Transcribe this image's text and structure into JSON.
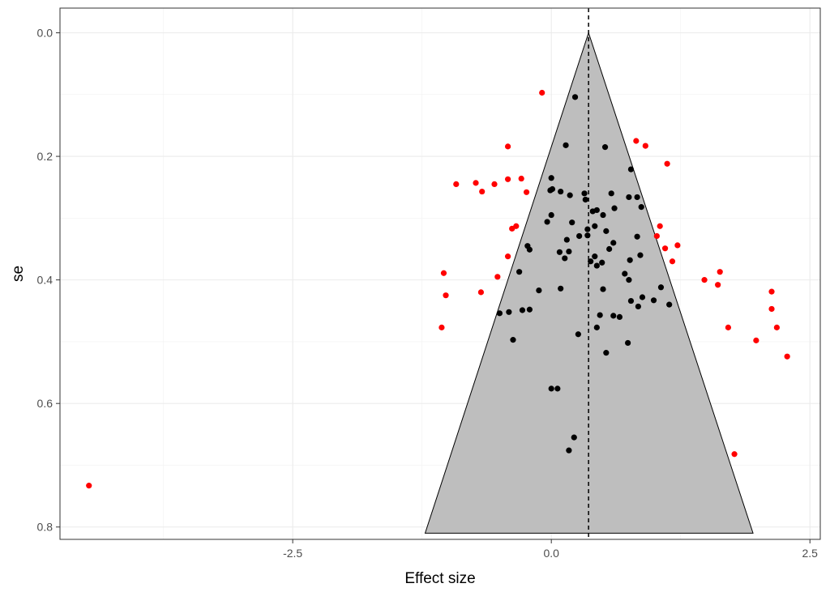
{
  "chart_data": {
    "type": "scatter",
    "title": "",
    "xlabel": "Effect size",
    "ylabel": "se",
    "xlim": [
      -4.75,
      2.6
    ],
    "ylim": [
      0.82,
      -0.04
    ],
    "y_reversed": true,
    "x_ticks": [
      -2.5,
      0.0,
      2.5
    ],
    "x_tick_labels": [
      "-2.5",
      "0.0",
      "2.5"
    ],
    "y_ticks": [
      0.0,
      0.2,
      0.4,
      0.6,
      0.8
    ],
    "y_tick_labels": [
      "0.0",
      "0.2",
      "0.4",
      "0.6",
      "0.8"
    ],
    "grid": true,
    "legend": "none",
    "funnel": {
      "center": 0.36,
      "apex_se": 0.0,
      "base_se": 0.81,
      "base_left": -1.22,
      "base_right": 1.95,
      "fill": "#bebebe"
    },
    "reference_line": {
      "x": 0.36,
      "style": "dashed"
    },
    "colors": {
      "inside": "#000000",
      "outside": "#ff0000"
    },
    "points_outside": [
      [
        -4.47,
        0.733
      ],
      [
        -0.09,
        0.097
      ],
      [
        -0.42,
        0.184
      ],
      [
        0.82,
        0.175
      ],
      [
        0.91,
        0.183
      ],
      [
        1.12,
        0.212
      ],
      [
        -0.92,
        0.245
      ],
      [
        -0.73,
        0.243
      ],
      [
        -0.67,
        0.257
      ],
      [
        -0.55,
        0.245
      ],
      [
        -0.42,
        0.237
      ],
      [
        -0.29,
        0.236
      ],
      [
        -0.24,
        0.258
      ],
      [
        -0.38,
        0.317
      ],
      [
        -0.34,
        0.313
      ],
      [
        -0.42,
        0.362
      ],
      [
        1.05,
        0.313
      ],
      [
        1.02,
        0.329
      ],
      [
        1.1,
        0.349
      ],
      [
        1.22,
        0.344
      ],
      [
        1.17,
        0.37
      ],
      [
        -1.04,
        0.389
      ],
      [
        -1.02,
        0.425
      ],
      [
        -0.52,
        0.395
      ],
      [
        -0.68,
        0.42
      ],
      [
        1.48,
        0.4
      ],
      [
        1.63,
        0.387
      ],
      [
        1.61,
        0.408
      ],
      [
        2.13,
        0.419
      ],
      [
        2.13,
        0.447
      ],
      [
        2.18,
        0.477
      ],
      [
        -1.06,
        0.477
      ],
      [
        1.71,
        0.477
      ],
      [
        1.98,
        0.498
      ],
      [
        2.28,
        0.524
      ],
      [
        1.77,
        0.682
      ]
    ],
    "points_inside": [
      [
        0.23,
        0.104
      ],
      [
        0.14,
        0.182
      ],
      [
        0.52,
        0.185
      ],
      [
        0.77,
        0.221
      ],
      [
        0.0,
        0.235
      ],
      [
        -0.01,
        0.255
      ],
      [
        0.01,
        0.253
      ],
      [
        0.09,
        0.257
      ],
      [
        0.18,
        0.263
      ],
      [
        0.32,
        0.26
      ],
      [
        0.33,
        0.27
      ],
      [
        0.58,
        0.26
      ],
      [
        0.75,
        0.266
      ],
      [
        0.83,
        0.266
      ],
      [
        0.61,
        0.284
      ],
      [
        0.87,
        0.282
      ],
      [
        0.4,
        0.289
      ],
      [
        0.44,
        0.287
      ],
      [
        0.5,
        0.295
      ],
      [
        0.0,
        0.295
      ],
      [
        -0.04,
        0.306
      ],
      [
        0.2,
        0.307
      ],
      [
        0.42,
        0.313
      ],
      [
        0.35,
        0.318
      ],
      [
        0.53,
        0.321
      ],
      [
        0.35,
        0.328
      ],
      [
        0.27,
        0.329
      ],
      [
        0.15,
        0.335
      ],
      [
        0.83,
        0.33
      ],
      [
        0.6,
        0.34
      ],
      [
        0.56,
        0.35
      ],
      [
        -0.23,
        0.345
      ],
      [
        -0.21,
        0.351
      ],
      [
        0.08,
        0.355
      ],
      [
        0.17,
        0.354
      ],
      [
        0.42,
        0.362
      ],
      [
        0.86,
        0.36
      ],
      [
        0.76,
        0.368
      ],
      [
        0.13,
        0.365
      ],
      [
        0.38,
        0.37
      ],
      [
        0.44,
        0.377
      ],
      [
        0.49,
        0.372
      ],
      [
        -0.31,
        0.387
      ],
      [
        0.71,
        0.39
      ],
      [
        0.75,
        0.4
      ],
      [
        1.06,
        0.412
      ],
      [
        0.09,
        0.414
      ],
      [
        -0.12,
        0.417
      ],
      [
        0.5,
        0.415
      ],
      [
        0.88,
        0.428
      ],
      [
        0.77,
        0.434
      ],
      [
        0.99,
        0.433
      ],
      [
        1.14,
        0.44
      ],
      [
        0.84,
        0.443
      ],
      [
        -0.5,
        0.454
      ],
      [
        -0.41,
        0.452
      ],
      [
        -0.28,
        0.449
      ],
      [
        -0.21,
        0.448
      ],
      [
        0.47,
        0.457
      ],
      [
        0.6,
        0.458
      ],
      [
        0.66,
        0.46
      ],
      [
        0.44,
        0.477
      ],
      [
        0.26,
        0.488
      ],
      [
        -0.37,
        0.497
      ],
      [
        0.74,
        0.502
      ],
      [
        0.53,
        0.518
      ],
      [
        0.0,
        0.576
      ],
      [
        0.06,
        0.576
      ],
      [
        0.22,
        0.655
      ],
      [
        0.17,
        0.676
      ]
    ]
  }
}
